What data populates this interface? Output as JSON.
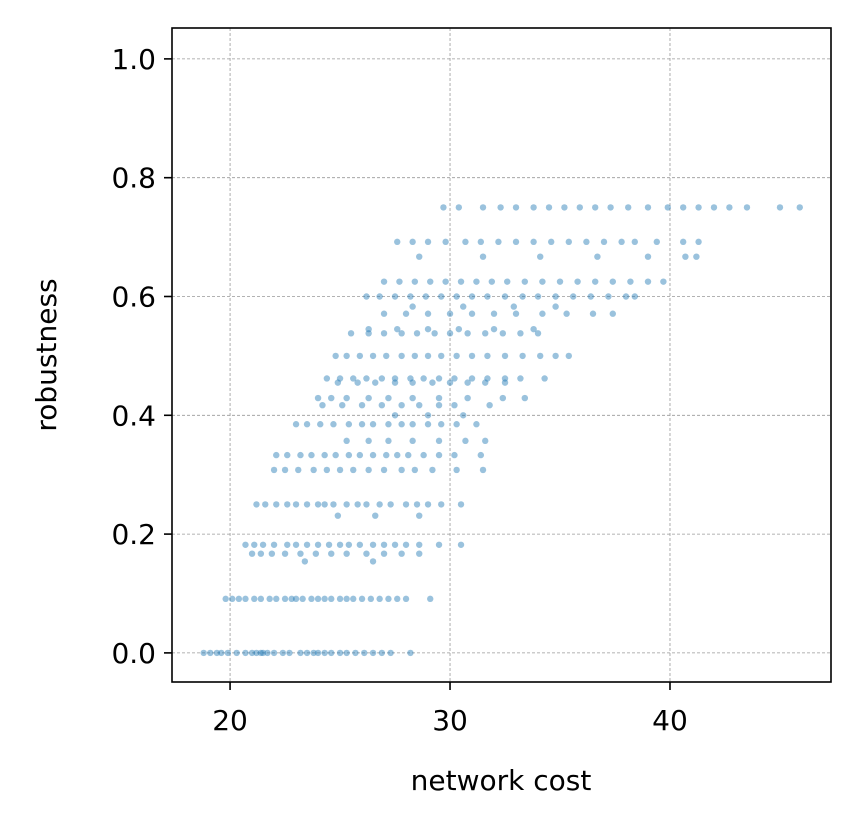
{
  "chart_data": {
    "type": "scatter",
    "xlabel": "network cost",
    "ylabel": "robustness",
    "xlim": [
      17.36,
      47.32
    ],
    "ylim": [
      -0.049,
      1.052
    ],
    "xticks": [
      20,
      30,
      40
    ],
    "yticks": [
      {
        "value": 0,
        "label": "0.0"
      },
      {
        "value": 0.2,
        "label": "0.2"
      },
      {
        "value": 0.4,
        "label": "0.4"
      },
      {
        "value": 0.6,
        "label": "0.6"
      },
      {
        "value": 0.8,
        "label": "0.8"
      },
      {
        "value": 1,
        "label": "1.0"
      }
    ],
    "grid": true,
    "series": [
      {
        "color": "#1f77b4",
        "x": [
          18.8,
          19.1,
          19.4,
          19.6,
          19.9,
          20.3,
          20.7,
          21.0,
          21.2,
          21.4,
          21.5,
          21.7,
          22.0,
          22.4,
          22.7,
          23.2,
          23.5,
          23.8,
          24.0,
          24.3,
          24.6,
          25.0,
          25.3,
          25.7,
          26.1,
          26.5,
          26.9,
          27.3,
          28.2,
          19.8,
          20.1,
          20.4,
          20.7,
          21.1,
          21.4,
          21.8,
          22.1,
          22.5,
          22.8,
          23.0,
          23.3,
          23.7,
          24.0,
          24.3,
          24.6,
          25.0,
          25.3,
          25.6,
          26.0,
          26.4,
          26.8,
          27.2,
          27.6,
          28.0,
          29.1,
          23.4,
          26.5,
          21.0,
          21.4,
          21.9,
          22.5,
          23.2,
          23.9,
          24.6,
          25.3,
          26.2,
          27.0,
          27.8,
          28.6,
          20.7,
          21.1,
          21.5,
          22.0,
          22.6,
          23.0,
          23.5,
          24.0,
          24.5,
          25.0,
          25.4,
          25.9,
          26.5,
          27.0,
          27.5,
          28.0,
          28.6,
          29.5,
          30.5,
          24.9,
          26.6,
          28.6,
          21.2,
          21.6,
          22.1,
          22.6,
          23.0,
          23.5,
          24.0,
          24.3,
          24.7,
          25.3,
          25.8,
          26.2,
          26.8,
          27.3,
          28.0,
          28.5,
          29.0,
          29.6,
          30.5,
          22.0,
          22.5,
          23.1,
          23.8,
          24.4,
          25.0,
          25.6,
          26.3,
          27.0,
          27.8,
          28.4,
          29.2,
          30.3,
          31.5,
          22.1,
          22.6,
          23.2,
          23.7,
          24.3,
          24.8,
          25.4,
          25.9,
          26.5,
          27.1,
          27.6,
          28.1,
          28.8,
          29.5,
          30.2,
          31.4,
          25.3,
          26.3,
          27.2,
          28.3,
          29.5,
          30.7,
          31.6,
          23.0,
          23.5,
          24.1,
          24.7,
          25.4,
          26.0,
          26.5,
          27.2,
          27.8,
          28.3,
          29.0,
          29.6,
          30.3,
          31.2,
          27.5,
          29.0,
          30.6,
          24.2,
          25.1,
          26.0,
          26.9,
          27.8,
          28.6,
          29.5,
          30.2,
          31.8,
          24.0,
          24.6,
          25.3,
          26.3,
          27.2,
          28.3,
          29.5,
          30.8,
          32.4,
          33.4,
          24.9,
          25.8,
          26.6,
          27.5,
          28.3,
          29.2,
          30.0,
          30.8,
          31.6,
          32.5,
          24.4,
          25.0,
          25.6,
          26.2,
          26.9,
          27.5,
          28.2,
          28.8,
          29.5,
          30.2,
          31.0,
          31.7,
          32.5,
          33.2,
          34.3,
          24.8,
          25.3,
          25.9,
          26.5,
          27.1,
          27.8,
          28.4,
          29.0,
          29.6,
          30.3,
          31.0,
          31.7,
          32.5,
          33.3,
          34.1,
          34.8,
          35.4,
          25.5,
          26.3,
          27.0,
          27.8,
          28.5,
          29.3,
          30.0,
          30.8,
          31.6,
          32.4,
          33.2,
          34.0,
          26.3,
          27.6,
          29.0,
          30.4,
          32.0,
          33.8,
          27.0,
          28.0,
          29.0,
          30.0,
          31.0,
          32.0,
          33.0,
          34.2,
          35.3,
          36.5,
          37.4,
          28.3,
          30.6,
          32.9,
          34.8,
          26.2,
          26.8,
          27.5,
          28.2,
          28.9,
          29.6,
          30.3,
          31.0,
          31.7,
          32.5,
          33.3,
          34.0,
          34.8,
          35.6,
          36.4,
          37.2,
          38.0,
          38.4,
          27.0,
          27.7,
          28.4,
          29.1,
          29.8,
          30.5,
          31.2,
          31.9,
          32.6,
          33.4,
          34.2,
          35.0,
          35.8,
          36.6,
          37.4,
          38.2,
          39.0,
          39.7,
          28.6,
          31.5,
          34.1,
          36.7,
          39.0,
          40.7,
          41.2,
          27.6,
          28.3,
          29.0,
          29.8,
          30.7,
          31.4,
          32.2,
          33.0,
          33.8,
          34.6,
          35.4,
          36.2,
          37.0,
          37.8,
          38.4,
          39.4,
          40.6,
          41.3,
          29.7,
          30.4,
          31.5,
          32.3,
          33.0,
          33.8,
          34.5,
          35.2,
          35.9,
          36.6,
          37.3,
          38.1,
          39.0,
          39.9,
          40.6,
          41.3,
          42.0,
          42.7,
          43.5,
          45.0,
          45.9
        ],
        "values": [
          0,
          0,
          0,
          0,
          0,
          0,
          0,
          0,
          0,
          0,
          0,
          0,
          0,
          0,
          0,
          0,
          0,
          0,
          0,
          0,
          0,
          0,
          0,
          0,
          0,
          0,
          0,
          0,
          0,
          0.091,
          0.091,
          0.091,
          0.091,
          0.091,
          0.091,
          0.091,
          0.091,
          0.091,
          0.091,
          0.091,
          0.091,
          0.091,
          0.091,
          0.091,
          0.091,
          0.091,
          0.091,
          0.091,
          0.091,
          0.091,
          0.091,
          0.091,
          0.091,
          0.091,
          0.091,
          0.154,
          0.154,
          0.167,
          0.167,
          0.167,
          0.167,
          0.167,
          0.167,
          0.167,
          0.167,
          0.167,
          0.167,
          0.167,
          0.167,
          0.182,
          0.182,
          0.182,
          0.182,
          0.182,
          0.182,
          0.182,
          0.182,
          0.182,
          0.182,
          0.182,
          0.182,
          0.182,
          0.182,
          0.182,
          0.182,
          0.182,
          0.182,
          0.182,
          0.231,
          0.231,
          0.231,
          0.25,
          0.25,
          0.25,
          0.25,
          0.25,
          0.25,
          0.25,
          0.25,
          0.25,
          0.25,
          0.25,
          0.25,
          0.25,
          0.25,
          0.25,
          0.25,
          0.25,
          0.25,
          0.25,
          0.308,
          0.308,
          0.308,
          0.308,
          0.308,
          0.308,
          0.308,
          0.308,
          0.308,
          0.308,
          0.308,
          0.308,
          0.308,
          0.308,
          0.333,
          0.333,
          0.333,
          0.333,
          0.333,
          0.333,
          0.333,
          0.333,
          0.333,
          0.333,
          0.333,
          0.333,
          0.333,
          0.333,
          0.333,
          0.333,
          0.357,
          0.357,
          0.357,
          0.357,
          0.357,
          0.357,
          0.357,
          0.385,
          0.385,
          0.385,
          0.385,
          0.385,
          0.385,
          0.385,
          0.385,
          0.385,
          0.385,
          0.385,
          0.385,
          0.385,
          0.385,
          0.4,
          0.4,
          0.4,
          0.417,
          0.417,
          0.417,
          0.417,
          0.417,
          0.417,
          0.417,
          0.417,
          0.417,
          0.429,
          0.429,
          0.429,
          0.429,
          0.429,
          0.429,
          0.429,
          0.429,
          0.429,
          0.429,
          0.455,
          0.455,
          0.455,
          0.455,
          0.455,
          0.455,
          0.455,
          0.455,
          0.455,
          0.455,
          0.462,
          0.462,
          0.462,
          0.462,
          0.462,
          0.462,
          0.462,
          0.462,
          0.462,
          0.462,
          0.462,
          0.462,
          0.462,
          0.462,
          0.462,
          0.5,
          0.5,
          0.5,
          0.5,
          0.5,
          0.5,
          0.5,
          0.5,
          0.5,
          0.5,
          0.5,
          0.5,
          0.5,
          0.5,
          0.5,
          0.5,
          0.5,
          0.538,
          0.538,
          0.538,
          0.538,
          0.538,
          0.538,
          0.538,
          0.538,
          0.538,
          0.538,
          0.538,
          0.538,
          0.545,
          0.545,
          0.545,
          0.545,
          0.545,
          0.545,
          0.571,
          0.571,
          0.571,
          0.571,
          0.571,
          0.571,
          0.571,
          0.571,
          0.571,
          0.571,
          0.571,
          0.583,
          0.583,
          0.583,
          0.583,
          0.6,
          0.6,
          0.6,
          0.6,
          0.6,
          0.6,
          0.6,
          0.6,
          0.6,
          0.6,
          0.6,
          0.6,
          0.6,
          0.6,
          0.6,
          0.6,
          0.6,
          0.6,
          0.625,
          0.625,
          0.625,
          0.625,
          0.625,
          0.625,
          0.625,
          0.625,
          0.625,
          0.625,
          0.625,
          0.625,
          0.625,
          0.625,
          0.625,
          0.625,
          0.625,
          0.625,
          0.667,
          0.667,
          0.667,
          0.667,
          0.667,
          0.667,
          0.667,
          0.692,
          0.692,
          0.692,
          0.692,
          0.692,
          0.692,
          0.692,
          0.692,
          0.692,
          0.692,
          0.692,
          0.692,
          0.692,
          0.692,
          0.692,
          0.692,
          0.692,
          0.692,
          0.75,
          0.75,
          0.75,
          0.75,
          0.75,
          0.75,
          0.75,
          0.75,
          0.75,
          0.75,
          0.75,
          0.75,
          0.75,
          0.75,
          0.75,
          0.75,
          0.75,
          0.75,
          0.75,
          0.75,
          0.75
        ]
      }
    ]
  }
}
